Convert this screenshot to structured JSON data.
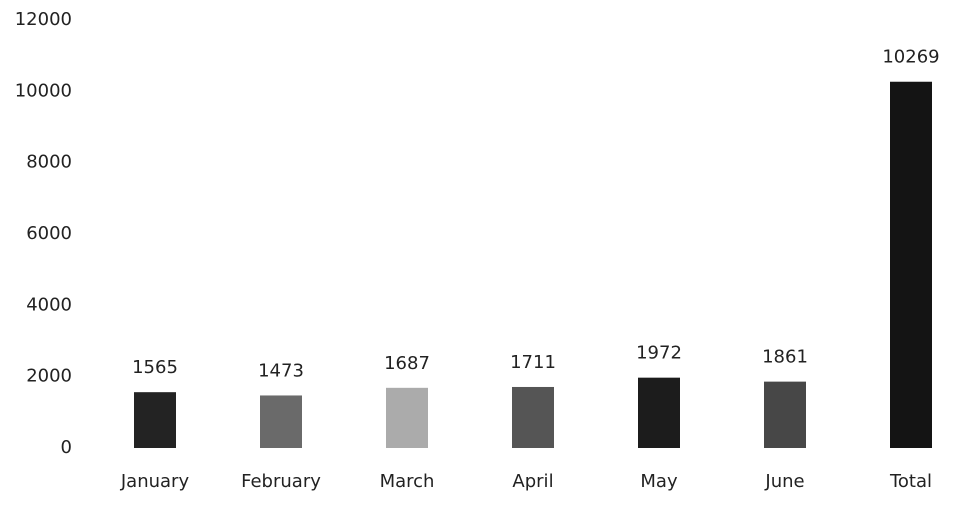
{
  "chart_data": {
    "type": "bar",
    "categories": [
      "January",
      "February",
      "March",
      "April",
      "May",
      "June",
      "Total"
    ],
    "values": [
      1565,
      1473,
      1687,
      1711,
      1972,
      1861,
      10269
    ],
    "colors": [
      "#232323",
      "#6a6a6a",
      "#ababab",
      "#555555",
      "#1c1c1c",
      "#474747",
      "#141414"
    ],
    "ylim": [
      0,
      12000
    ],
    "yticks": [
      0,
      2000,
      4000,
      6000,
      8000,
      10000,
      12000
    ],
    "grid": false
  }
}
